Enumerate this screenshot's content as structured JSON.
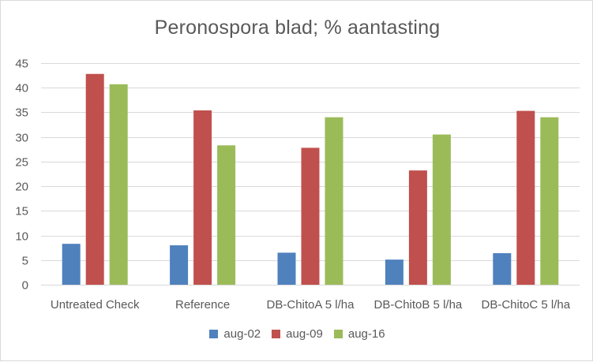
{
  "chart_data": {
    "type": "bar",
    "title": "Peronospora blad; % aantasting",
    "categories": [
      "Untreated Check",
      "Reference",
      "DB-ChitoA 5 l/ha",
      "DB-ChitoB 5 l/ha",
      "DB-ChitoC 5 l/ha"
    ],
    "series": [
      {
        "name": "aug-02",
        "color": "#4f81bd",
        "values": [
          8.3,
          8.0,
          6.5,
          5.1,
          6.4
        ]
      },
      {
        "name": "aug-09",
        "color": "#c0504d",
        "values": [
          42.8,
          35.4,
          27.8,
          23.2,
          35.3
        ]
      },
      {
        "name": "aug-16",
        "color": "#9bbb59",
        "values": [
          40.7,
          28.3,
          34.0,
          30.5,
          34.0
        ]
      }
    ],
    "ylim": [
      0,
      45
    ],
    "yticks": [
      0,
      5,
      10,
      15,
      20,
      25,
      30,
      35,
      40,
      45
    ],
    "grid": true,
    "legend_position": "bottom",
    "xlabel": "",
    "ylabel": ""
  }
}
